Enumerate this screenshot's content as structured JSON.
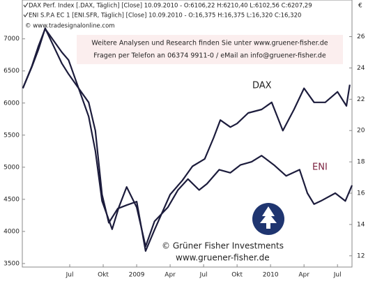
{
  "chart_data": {
    "type": "line",
    "series": [
      {
        "name": "DAX Perf. Index [.DAX, Täglich] [Close] 10.09.2010 - O:6106,22 H:6210,40 L:6102,56 C:6207,29",
        "color": "#1c1c3c",
        "x": [
          1.8,
          2.6,
          3.2,
          3.8,
          4.4,
          5.3,
          5.9,
          6.8,
          7.7,
          8.3,
          8.9,
          9.5,
          10.3,
          11.1,
          12.0,
          12.8,
          13.6,
          15.0,
          16.1,
          17.0,
          18.1,
          18.9,
          19.5,
          20.4,
          21.0,
          22.0,
          23.2,
          24.1,
          25.1,
          26.1,
          27.0,
          27.9,
          28.9,
          30.0,
          30.8,
          31.1
        ],
        "values": [
          6230,
          6560,
          6835,
          7165,
          6945,
          6615,
          6450,
          6230,
          6010,
          5570,
          4575,
          4135,
          4355,
          4410,
          4465,
          3695,
          4025,
          4575,
          4795,
          5015,
          5130,
          5460,
          5735,
          5625,
          5680,
          5845,
          5900,
          6010,
          5570,
          5900,
          6230,
          6010,
          6010,
          6175,
          5955,
          6285
        ]
      },
      {
        "name": "ENI S.P.A   EC 1 [ENI.SFR, Täglich] [Close] 10.09.2010 - O:16,375 H:16,375 L:16,320 C:16,320",
        "color": "#1c1c3c",
        "axis": "y2",
        "x": [
          1.8,
          2.6,
          3.2,
          3.8,
          4.4,
          5.3,
          5.9,
          6.8,
          7.7,
          8.3,
          8.9,
          9.8,
          10.4,
          11.1,
          12.0,
          12.8,
          13.6,
          14.8,
          15.7,
          16.6,
          17.6,
          18.3,
          19.4,
          20.4,
          21.3,
          22.3,
          23.2,
          24.3,
          25.4,
          26.6,
          27.3,
          27.9,
          28.5,
          29.8,
          30.7,
          31.3
        ],
        "values": [
          22.7,
          24.1,
          25.4,
          26.5,
          25.9,
          25.0,
          24.5,
          22.7,
          20.9,
          18.7,
          15.5,
          13.7,
          15.1,
          16.4,
          15.1,
          12.6,
          14.2,
          15.1,
          16.2,
          16.9,
          16.2,
          16.6,
          17.5,
          17.3,
          17.8,
          18.0,
          18.4,
          17.8,
          17.1,
          17.5,
          16.0,
          15.3,
          15.5,
          16.0,
          15.5,
          16.5
        ]
      }
    ],
    "xlim": [
      1.75,
      31.3
    ],
    "xticks": [
      {
        "value": 6,
        "label": "Jul"
      },
      {
        "value": 9,
        "label": "Okt"
      },
      {
        "value": 12,
        "label": "2009"
      },
      {
        "value": 15,
        "label": "Apr"
      },
      {
        "value": 18,
        "label": "Jul"
      },
      {
        "value": 21,
        "label": "Okt"
      },
      {
        "value": 24,
        "label": "2010"
      },
      {
        "value": 27,
        "label": "Apr"
      },
      {
        "value": 30,
        "label": "Jul"
      }
    ],
    "ylim": [
      3445,
      7605
    ],
    "yticks": [
      3500,
      4000,
      4500,
      5000,
      5500,
      6000,
      6500,
      7000
    ],
    "y2lim": [
      11.28,
      28.34
    ],
    "y2ticks": [
      12,
      14,
      16,
      18,
      20,
      22,
      24,
      26
    ],
    "y2label": "€",
    "source": "© www.tradesignalonline.com",
    "info": [
      "Weitere Analysen und Research finden Sie unter www.gruener-fisher.de",
      "Fragen per Telefon an 06374 9911-0 / eMail an info@gruener-fisher.de"
    ],
    "annotations": [
      "DAX",
      "ENI"
    ],
    "footer": [
      "© Grüner Fisher Investments",
      "www.gruener-fisher.de"
    ]
  }
}
